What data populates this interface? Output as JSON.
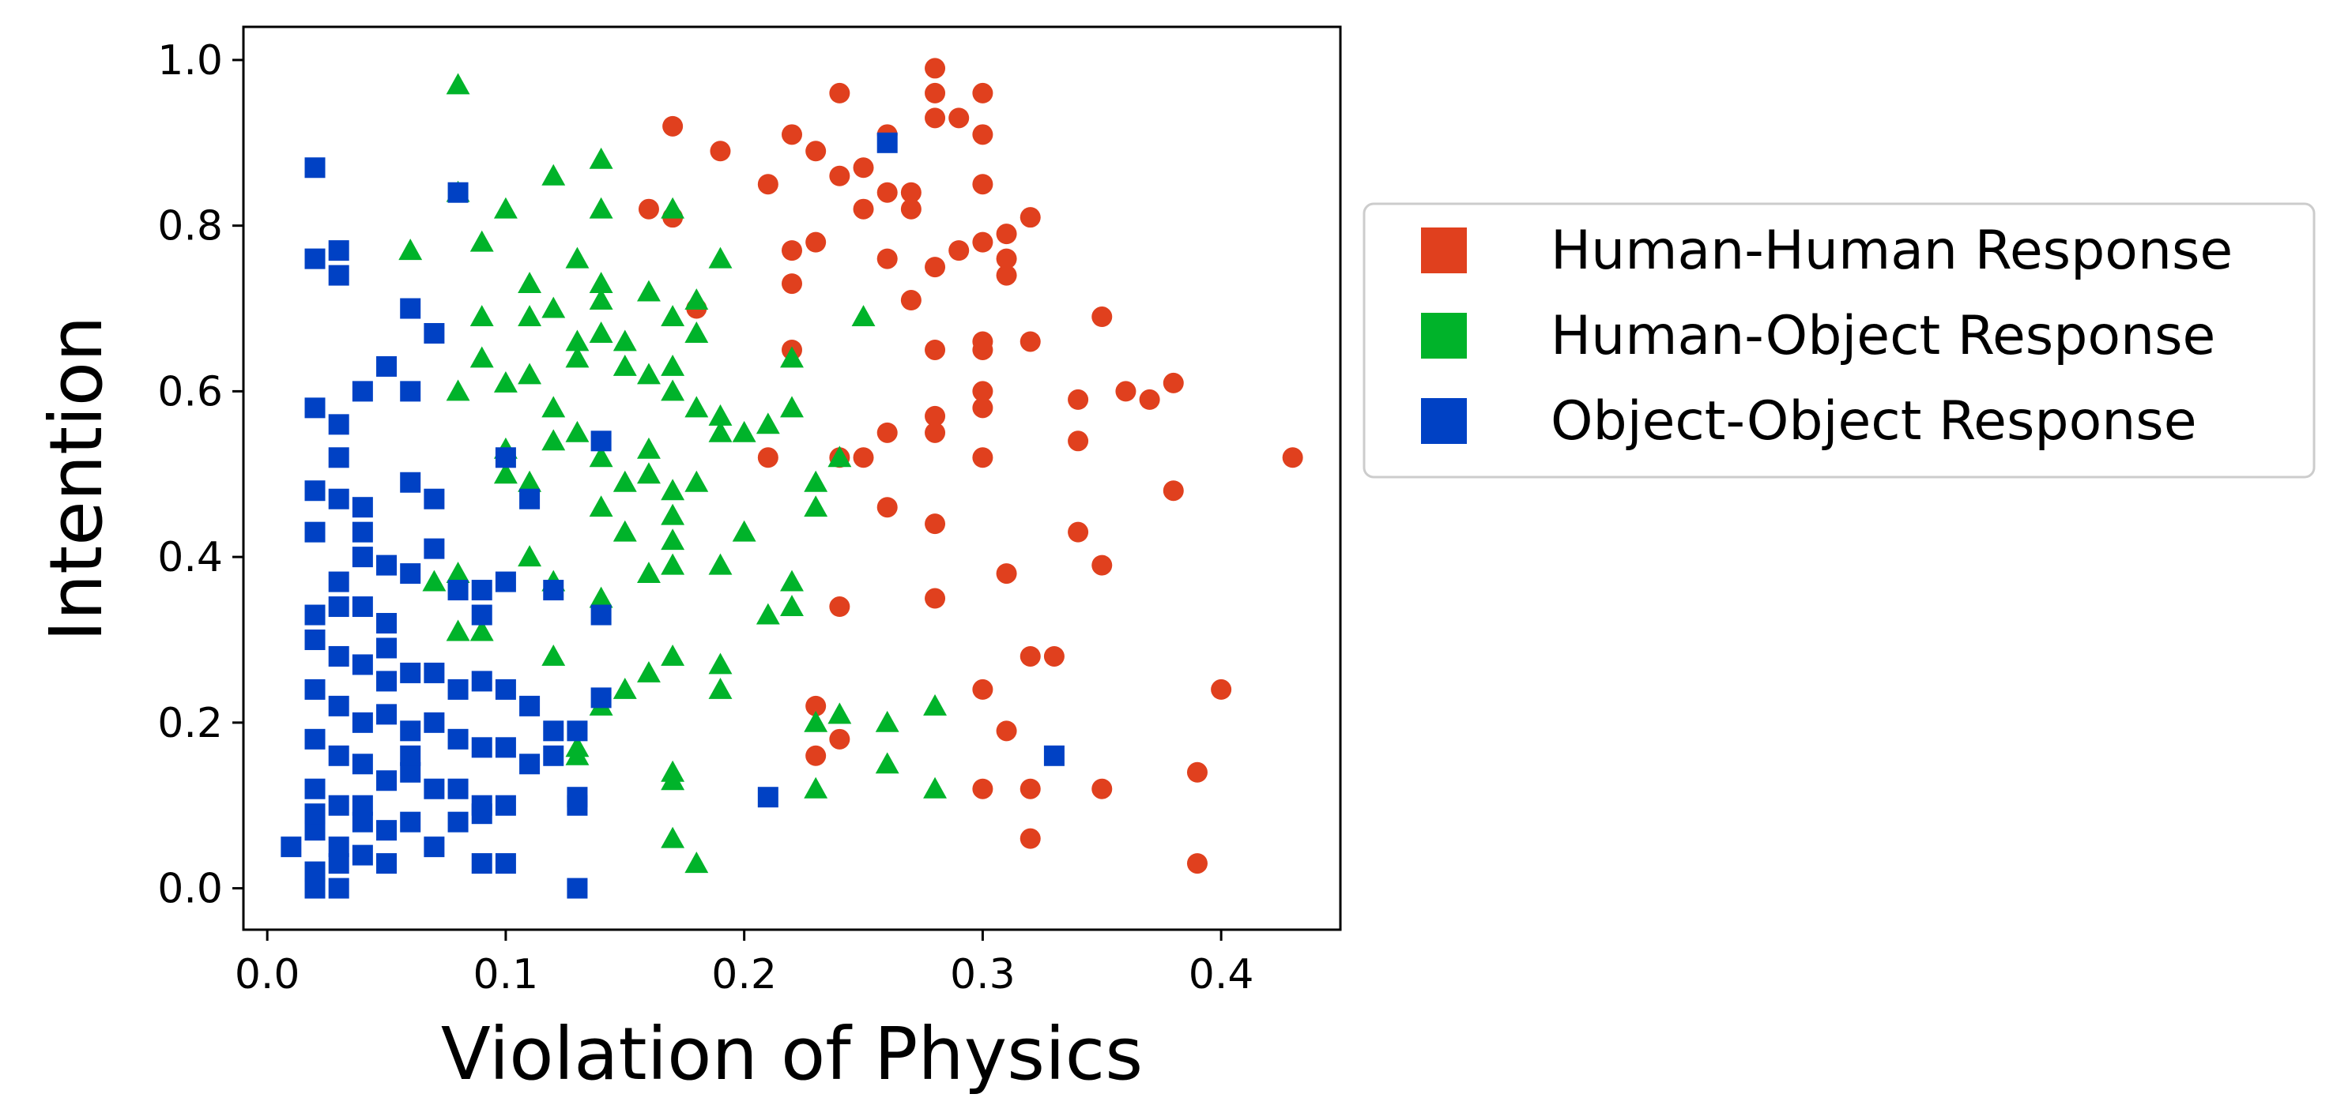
{
  "chart_data": {
    "type": "scatter",
    "xlabel": "Violation of Physics",
    "ylabel": "Intention",
    "xlim": [
      -0.01,
      0.45
    ],
    "ylim": [
      -0.05,
      1.04
    ],
    "xticks": [
      "0.0",
      "0.1",
      "0.2",
      "0.3",
      "0.4"
    ],
    "xtick_values": [
      0.0,
      0.1,
      0.2,
      0.3,
      0.4
    ],
    "yticks": [
      "0.0",
      "0.2",
      "0.4",
      "0.6",
      "0.8",
      "1.0"
    ],
    "ytick_values": [
      0.0,
      0.2,
      0.4,
      0.6,
      0.8,
      1.0
    ],
    "grid": false,
    "legend_position": "right",
    "series": [
      {
        "name": "Human-Human Response",
        "marker": "circle",
        "color": "#e0401e",
        "points": [
          [
            0.17,
            0.92
          ],
          [
            0.19,
            0.89
          ],
          [
            0.21,
            0.85
          ],
          [
            0.22,
            0.91
          ],
          [
            0.23,
            0.89
          ],
          [
            0.24,
            0.86
          ],
          [
            0.24,
            0.96
          ],
          [
            0.25,
            0.87
          ],
          [
            0.26,
            0.91
          ],
          [
            0.26,
            0.84
          ],
          [
            0.27,
            0.82
          ],
          [
            0.27,
            0.84
          ],
          [
            0.28,
            0.93
          ],
          [
            0.28,
            0.96
          ],
          [
            0.29,
            0.93
          ],
          [
            0.3,
            0.96
          ],
          [
            0.3,
            0.91
          ],
          [
            0.3,
            0.85
          ],
          [
            0.31,
            0.79
          ],
          [
            0.32,
            0.81
          ],
          [
            0.28,
            0.99
          ],
          [
            0.23,
            0.78
          ],
          [
            0.22,
            0.77
          ],
          [
            0.22,
            0.73
          ],
          [
            0.25,
            0.82
          ],
          [
            0.26,
            0.76
          ],
          [
            0.27,
            0.71
          ],
          [
            0.28,
            0.75
          ],
          [
            0.29,
            0.77
          ],
          [
            0.3,
            0.78
          ],
          [
            0.31,
            0.76
          ],
          [
            0.31,
            0.74
          ],
          [
            0.3,
            0.66
          ],
          [
            0.3,
            0.65
          ],
          [
            0.32,
            0.66
          ],
          [
            0.28,
            0.65
          ],
          [
            0.26,
            0.55
          ],
          [
            0.28,
            0.55
          ],
          [
            0.28,
            0.57
          ],
          [
            0.3,
            0.58
          ],
          [
            0.3,
            0.6
          ],
          [
            0.34,
            0.59
          ],
          [
            0.36,
            0.6
          ],
          [
            0.37,
            0.59
          ],
          [
            0.38,
            0.61
          ],
          [
            0.34,
            0.54
          ],
          [
            0.3,
            0.52
          ],
          [
            0.24,
            0.52
          ],
          [
            0.25,
            0.52
          ],
          [
            0.22,
            0.65
          ],
          [
            0.43,
            0.52
          ],
          [
            0.35,
            0.69
          ],
          [
            0.34,
            0.43
          ],
          [
            0.35,
            0.39
          ],
          [
            0.38,
            0.48
          ],
          [
            0.28,
            0.44
          ],
          [
            0.31,
            0.38
          ],
          [
            0.26,
            0.46
          ],
          [
            0.28,
            0.35
          ],
          [
            0.32,
            0.28
          ],
          [
            0.33,
            0.28
          ],
          [
            0.4,
            0.24
          ],
          [
            0.3,
            0.24
          ],
          [
            0.31,
            0.19
          ],
          [
            0.39,
            0.14
          ],
          [
            0.35,
            0.12
          ],
          [
            0.3,
            0.12
          ],
          [
            0.32,
            0.12
          ],
          [
            0.39,
            0.03
          ],
          [
            0.32,
            0.06
          ],
          [
            0.23,
            0.16
          ],
          [
            0.23,
            0.22
          ],
          [
            0.24,
            0.18
          ],
          [
            0.24,
            0.34
          ],
          [
            0.17,
            0.81
          ],
          [
            0.16,
            0.82
          ],
          [
            0.18,
            0.7
          ],
          [
            0.21,
            0.52
          ]
        ]
      },
      {
        "name": "Human-Object Response",
        "marker": "triangle",
        "color": "#00b32a",
        "points": [
          [
            0.08,
            0.97
          ],
          [
            0.14,
            0.88
          ],
          [
            0.08,
            0.84
          ],
          [
            0.1,
            0.82
          ],
          [
            0.14,
            0.82
          ],
          [
            0.12,
            0.86
          ],
          [
            0.17,
            0.82
          ],
          [
            0.13,
            0.76
          ],
          [
            0.06,
            0.77
          ],
          [
            0.09,
            0.78
          ],
          [
            0.11,
            0.73
          ],
          [
            0.12,
            0.7
          ],
          [
            0.11,
            0.69
          ],
          [
            0.14,
            0.71
          ],
          [
            0.14,
            0.73
          ],
          [
            0.16,
            0.72
          ],
          [
            0.17,
            0.69
          ],
          [
            0.18,
            0.67
          ],
          [
            0.18,
            0.71
          ],
          [
            0.19,
            0.76
          ],
          [
            0.09,
            0.69
          ],
          [
            0.09,
            0.64
          ],
          [
            0.1,
            0.61
          ],
          [
            0.08,
            0.6
          ],
          [
            0.11,
            0.62
          ],
          [
            0.12,
            0.58
          ],
          [
            0.13,
            0.64
          ],
          [
            0.13,
            0.66
          ],
          [
            0.14,
            0.67
          ],
          [
            0.15,
            0.63
          ],
          [
            0.15,
            0.66
          ],
          [
            0.16,
            0.62
          ],
          [
            0.17,
            0.63
          ],
          [
            0.17,
            0.6
          ],
          [
            0.18,
            0.58
          ],
          [
            0.19,
            0.57
          ],
          [
            0.2,
            0.55
          ],
          [
            0.21,
            0.56
          ],
          [
            0.22,
            0.58
          ],
          [
            0.22,
            0.64
          ],
          [
            0.1,
            0.53
          ],
          [
            0.1,
            0.5
          ],
          [
            0.11,
            0.49
          ],
          [
            0.12,
            0.54
          ],
          [
            0.13,
            0.55
          ],
          [
            0.14,
            0.52
          ],
          [
            0.15,
            0.49
          ],
          [
            0.16,
            0.5
          ],
          [
            0.16,
            0.53
          ],
          [
            0.17,
            0.48
          ],
          [
            0.18,
            0.49
          ],
          [
            0.19,
            0.55
          ],
          [
            0.11,
            0.4
          ],
          [
            0.14,
            0.46
          ],
          [
            0.15,
            0.43
          ],
          [
            0.17,
            0.45
          ],
          [
            0.17,
            0.42
          ],
          [
            0.16,
            0.38
          ],
          [
            0.17,
            0.39
          ],
          [
            0.19,
            0.39
          ],
          [
            0.21,
            0.33
          ],
          [
            0.22,
            0.34
          ],
          [
            0.22,
            0.37
          ],
          [
            0.23,
            0.46
          ],
          [
            0.24,
            0.52
          ],
          [
            0.25,
            0.69
          ],
          [
            0.08,
            0.38
          ],
          [
            0.07,
            0.37
          ],
          [
            0.12,
            0.37
          ],
          [
            0.14,
            0.35
          ],
          [
            0.12,
            0.28
          ],
          [
            0.16,
            0.26
          ],
          [
            0.15,
            0.24
          ],
          [
            0.17,
            0.28
          ],
          [
            0.19,
            0.27
          ],
          [
            0.19,
            0.24
          ],
          [
            0.24,
            0.21
          ],
          [
            0.23,
            0.2
          ],
          [
            0.26,
            0.2
          ],
          [
            0.28,
            0.22
          ],
          [
            0.14,
            0.22
          ],
          [
            0.13,
            0.17
          ],
          [
            0.17,
            0.13
          ],
          [
            0.17,
            0.14
          ],
          [
            0.17,
            0.06
          ],
          [
            0.18,
            0.03
          ],
          [
            0.23,
            0.12
          ],
          [
            0.26,
            0.15
          ],
          [
            0.28,
            0.12
          ],
          [
            0.08,
            0.31
          ],
          [
            0.09,
            0.31
          ],
          [
            0.23,
            0.49
          ],
          [
            0.2,
            0.43
          ],
          [
            0.13,
            0.16
          ]
        ]
      },
      {
        "name": "Object-Object Response",
        "marker": "square",
        "color": "#0041c4",
        "points": [
          [
            0.02,
            0.87
          ],
          [
            0.08,
            0.84
          ],
          [
            0.02,
            0.76
          ],
          [
            0.03,
            0.77
          ],
          [
            0.03,
            0.74
          ],
          [
            0.06,
            0.7
          ],
          [
            0.07,
            0.67
          ],
          [
            0.05,
            0.63
          ],
          [
            0.06,
            0.6
          ],
          [
            0.04,
            0.6
          ],
          [
            0.02,
            0.58
          ],
          [
            0.03,
            0.56
          ],
          [
            0.03,
            0.52
          ],
          [
            0.02,
            0.48
          ],
          [
            0.03,
            0.47
          ],
          [
            0.04,
            0.46
          ],
          [
            0.06,
            0.49
          ],
          [
            0.07,
            0.47
          ],
          [
            0.02,
            0.43
          ],
          [
            0.04,
            0.43
          ],
          [
            0.04,
            0.4
          ],
          [
            0.05,
            0.39
          ],
          [
            0.06,
            0.38
          ],
          [
            0.07,
            0.41
          ],
          [
            0.03,
            0.37
          ],
          [
            0.03,
            0.34
          ],
          [
            0.04,
            0.34
          ],
          [
            0.05,
            0.32
          ],
          [
            0.02,
            0.33
          ],
          [
            0.02,
            0.3
          ],
          [
            0.03,
            0.28
          ],
          [
            0.04,
            0.27
          ],
          [
            0.05,
            0.29
          ],
          [
            0.06,
            0.26
          ],
          [
            0.07,
            0.26
          ],
          [
            0.08,
            0.24
          ],
          [
            0.09,
            0.25
          ],
          [
            0.1,
            0.24
          ],
          [
            0.02,
            0.24
          ],
          [
            0.03,
            0.22
          ],
          [
            0.04,
            0.2
          ],
          [
            0.05,
            0.21
          ],
          [
            0.06,
            0.19
          ],
          [
            0.07,
            0.2
          ],
          [
            0.08,
            0.18
          ],
          [
            0.09,
            0.17
          ],
          [
            0.1,
            0.17
          ],
          [
            0.11,
            0.15
          ],
          [
            0.12,
            0.16
          ],
          [
            0.12,
            0.19
          ],
          [
            0.02,
            0.18
          ],
          [
            0.03,
            0.16
          ],
          [
            0.04,
            0.15
          ],
          [
            0.05,
            0.13
          ],
          [
            0.06,
            0.14
          ],
          [
            0.07,
            0.12
          ],
          [
            0.08,
            0.12
          ],
          [
            0.09,
            0.1
          ],
          [
            0.1,
            0.1
          ],
          [
            0.02,
            0.12
          ],
          [
            0.03,
            0.1
          ],
          [
            0.04,
            0.08
          ],
          [
            0.05,
            0.07
          ],
          [
            0.06,
            0.08
          ],
          [
            0.07,
            0.05
          ],
          [
            0.02,
            0.07
          ],
          [
            0.03,
            0.05
          ],
          [
            0.04,
            0.04
          ],
          [
            0.05,
            0.03
          ],
          [
            0.03,
            0.03
          ],
          [
            0.02,
            0.02
          ],
          [
            0.03,
            0.0
          ],
          [
            0.02,
            0.0
          ],
          [
            0.09,
            0.03
          ],
          [
            0.1,
            0.03
          ],
          [
            0.13,
            0.0
          ],
          [
            0.13,
            0.11
          ],
          [
            0.13,
            0.1
          ],
          [
            0.21,
            0.11
          ],
          [
            0.33,
            0.16
          ],
          [
            0.26,
            0.9
          ],
          [
            0.08,
            0.36
          ],
          [
            0.09,
            0.36
          ],
          [
            0.1,
            0.37
          ],
          [
            0.09,
            0.33
          ],
          [
            0.12,
            0.36
          ],
          [
            0.14,
            0.33
          ],
          [
            0.11,
            0.47
          ],
          [
            0.1,
            0.52
          ],
          [
            0.14,
            0.23
          ],
          [
            0.13,
            0.19
          ],
          [
            0.14,
            0.54
          ],
          [
            0.09,
            0.09
          ],
          [
            0.06,
            0.16
          ],
          [
            0.04,
            0.1
          ],
          [
            0.05,
            0.25
          ],
          [
            0.08,
            0.08
          ],
          [
            0.11,
            0.22
          ],
          [
            0.01,
            0.05
          ],
          [
            0.02,
            0.09
          ]
        ]
      }
    ]
  }
}
